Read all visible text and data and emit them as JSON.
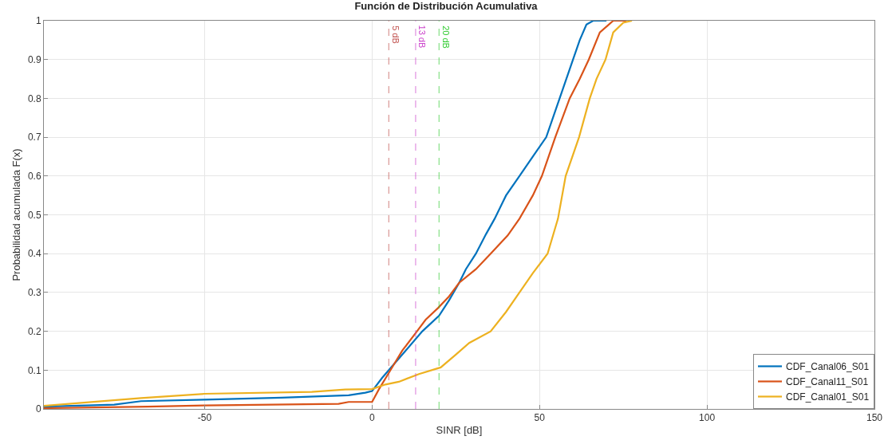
{
  "chart_data": {
    "type": "line",
    "title": "Función de Distribución Acumulativa",
    "xlabel": "SINR [dB]",
    "ylabel": "Probabilidad acumulada F(x)",
    "xlim": [
      -98,
      150
    ],
    "xticks": [
      -50,
      0,
      50,
      100,
      150
    ],
    "ylim": [
      0,
      1
    ],
    "yticks": [
      0,
      0.1,
      0.2,
      0.3,
      0.4,
      0.5,
      0.6,
      0.7,
      0.8,
      0.9,
      1
    ],
    "grid": true,
    "legend": "bottom right",
    "marker": "none",
    "line_style": "solid",
    "series": [
      {
        "name": "CDF_Canal06_S01",
        "color": "#0072bd",
        "x": [
          -98,
          -77,
          -69,
          -50,
          -27,
          -7,
          -2,
          0,
          3,
          5,
          10,
          15,
          20,
          23,
          26,
          28,
          31,
          34,
          36.6,
          40,
          44,
          48,
          52,
          56,
          60,
          62,
          64,
          66,
          70
        ],
        "values": [
          0.006,
          0.011,
          0.02,
          0.024,
          0.029,
          0.035,
          0.042,
          0.046,
          0.08,
          0.1,
          0.15,
          0.2,
          0.24,
          0.28,
          0.325,
          0.36,
          0.4,
          0.45,
          0.49,
          0.55,
          0.6,
          0.65,
          0.7,
          0.8,
          0.9,
          0.95,
          0.99,
          1,
          1
        ]
      },
      {
        "name": "CDF_Canal11_S01",
        "color": "#d95319",
        "x": [
          -98,
          -67,
          -50,
          -10,
          -7,
          0,
          2,
          5.5,
          9,
          13.4,
          16,
          19.7,
          23,
          26,
          31,
          35.4,
          40.5,
          44,
          48,
          50.7,
          54.7,
          59,
          62,
          64.7,
          68,
          72,
          76
        ],
        "values": [
          0.002,
          0.006,
          0.009,
          0.013,
          0.018,
          0.018,
          0.05,
          0.1,
          0.15,
          0.2,
          0.23,
          0.26,
          0.29,
          0.325,
          0.36,
          0.4,
          0.447,
          0.49,
          0.55,
          0.6,
          0.7,
          0.8,
          0.85,
          0.9,
          0.97,
          1,
          1
        ]
      },
      {
        "name": "CDF_Canal01_S01",
        "color": "#edb120",
        "x": [
          -98,
          -69,
          -50,
          -18,
          -8,
          0,
          4,
          8,
          14,
          20.5,
          25,
          29,
          35.4,
          40,
          44.5,
          48,
          52.4,
          55.5,
          57.8,
          61.8,
          65,
          67,
          69.7,
          72,
          75,
          77.6
        ],
        "values": [
          0.008,
          0.028,
          0.039,
          0.044,
          0.05,
          0.051,
          0.063,
          0.07,
          0.09,
          0.107,
          0.14,
          0.17,
          0.2,
          0.25,
          0.306,
          0.35,
          0.4,
          0.49,
          0.6,
          0.7,
          0.8,
          0.85,
          0.9,
          0.97,
          0.995,
          1
        ]
      }
    ],
    "ref_lines": [
      {
        "axis": "x",
        "value": 5,
        "label": "5 dB",
        "color": "#c0504d",
        "line_style": "dashed"
      },
      {
        "axis": "x",
        "value": 13,
        "label": "13 dB",
        "color": "#cc44cc",
        "line_style": "dashed"
      },
      {
        "axis": "x",
        "value": 20,
        "label": "20 dB",
        "color": "#33cc33",
        "line_style": "dashed"
      }
    ]
  }
}
